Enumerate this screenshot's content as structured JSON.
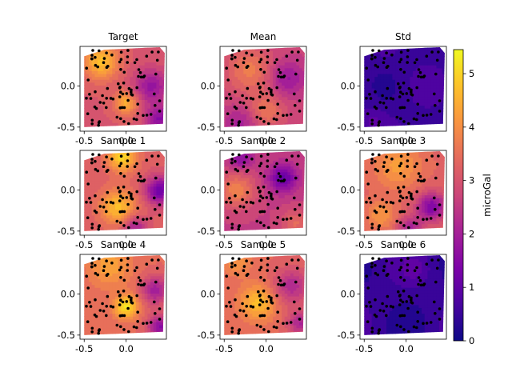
{
  "chart_data": {
    "type": "heatmap",
    "colormap": "plasma",
    "marker_color": "#000000",
    "panels": [
      {
        "title": "Target",
        "pattern": "target"
      },
      {
        "title": "Mean",
        "pattern": "mean"
      },
      {
        "title": "Std",
        "pattern": "std"
      },
      {
        "title": "Sample 1",
        "pattern": "s1"
      },
      {
        "title": "Sample 2",
        "pattern": "s2"
      },
      {
        "title": "Sample 3",
        "pattern": "s3"
      },
      {
        "title": "Sample 4",
        "pattern": "s4"
      },
      {
        "title": "Sample 5",
        "pattern": "s5"
      },
      {
        "title": "Sample 6",
        "pattern": "s6"
      }
    ],
    "xlim": [
      -0.55,
      0.48
    ],
    "ylim": [
      -0.55,
      0.48
    ],
    "x_ticks": [
      "-0.5",
      "0.0"
    ],
    "y_ticks": [
      "0.0",
      "-0.5"
    ],
    "x_tick_values": [
      -0.5,
      0.0
    ],
    "y_tick_values": [
      0.0,
      -0.5
    ],
    "colorbar": {
      "label": "microGal",
      "range": [
        0,
        5.45
      ],
      "ticks": [
        "0",
        "1",
        "2",
        "3",
        "4",
        "5"
      ],
      "tick_values": [
        0,
        1,
        2,
        3,
        4,
        5
      ]
    }
  }
}
